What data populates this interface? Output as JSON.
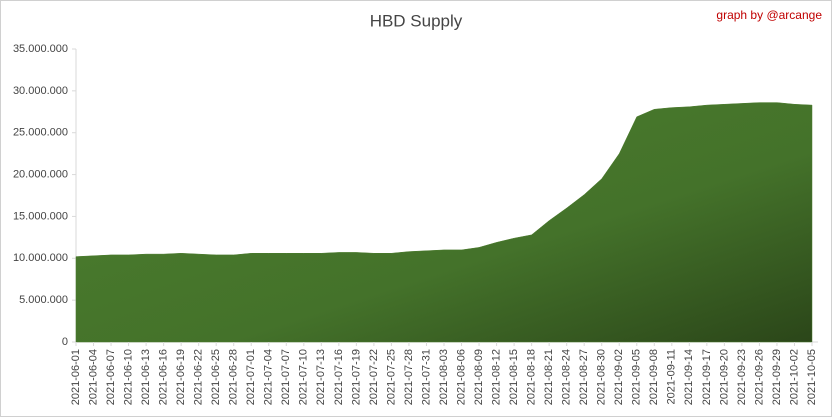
{
  "chart_data": {
    "type": "area",
    "title": "HBD Supply",
    "annotation": "graph by @arcange",
    "categories": [
      "2021-06-01",
      "2021-06-04",
      "2021-06-07",
      "2021-06-10",
      "2021-06-13",
      "2021-06-16",
      "2021-06-19",
      "2021-06-22",
      "2021-06-25",
      "2021-06-28",
      "2021-07-01",
      "2021-07-04",
      "2021-07-07",
      "2021-07-10",
      "2021-07-13",
      "2021-07-16",
      "2021-07-19",
      "2021-07-22",
      "2021-07-25",
      "2021-07-28",
      "2021-07-31",
      "2021-08-03",
      "2021-08-06",
      "2021-08-09",
      "2021-08-12",
      "2021-08-15",
      "2021-08-18",
      "2021-08-21",
      "2021-08-24",
      "2021-08-27",
      "2021-08-30",
      "2021-09-02",
      "2021-09-05",
      "2021-09-08",
      "2021-09-11",
      "2021-09-14",
      "2021-09-17",
      "2021-09-20",
      "2021-09-23",
      "2021-09-26",
      "2021-09-29",
      "2021-10-02",
      "2021-10-05"
    ],
    "values": [
      10200000,
      10300000,
      10400000,
      10400000,
      10500000,
      10500000,
      10600000,
      10500000,
      10400000,
      10400000,
      10600000,
      10600000,
      10600000,
      10600000,
      10600000,
      10700000,
      10700000,
      10600000,
      10600000,
      10800000,
      10900000,
      11000000,
      11000000,
      11300000,
      11900000,
      12400000,
      12800000,
      14500000,
      16000000,
      17600000,
      19500000,
      22500000,
      26900000,
      27800000,
      28000000,
      28100000,
      28300000,
      28400000,
      28500000,
      28600000,
      28600000,
      28400000,
      28300000
    ],
    "color": "#4a7a2c",
    "ylim": [
      0,
      35000000
    ],
    "yticks": [
      0,
      {
        "value": 5000000,
        "label": "5.000.000"
      },
      {
        "value": 10000000,
        "label": "10.000.000"
      },
      {
        "value": 15000000,
        "label": "15.000.000"
      },
      {
        "value": 20000000,
        "label": "20.000.000"
      },
      {
        "value": 25000000,
        "label": "25.000.000"
      },
      {
        "value": 30000000,
        "label": "30.000.000"
      },
      {
        "value": 35000000,
        "label": "35.000.000"
      }
    ]
  }
}
